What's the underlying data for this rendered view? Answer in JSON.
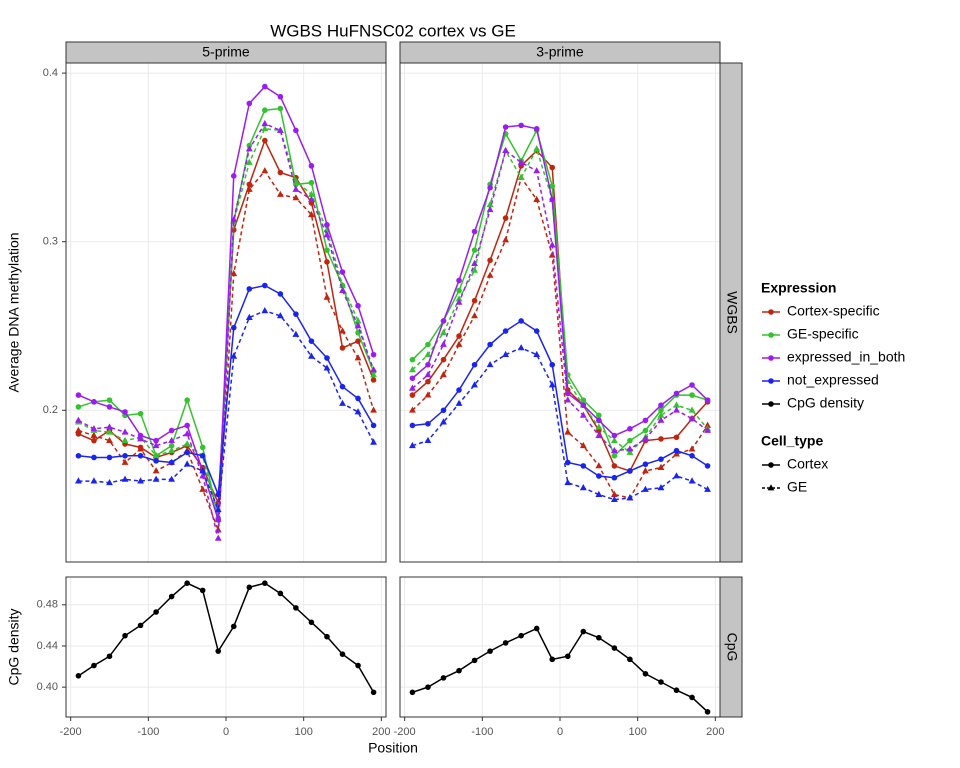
{
  "chart_data": {
    "type": "line",
    "title": "WGBS HuFNSC02 cortex vs GE",
    "x_label": "Position",
    "x": [
      -190,
      -170,
      -150,
      -130,
      -110,
      -90,
      -70,
      -50,
      -30,
      -10,
      10,
      30,
      50,
      70,
      90,
      110,
      130,
      150,
      170,
      190
    ],
    "xlim": [
      -206,
      206
    ],
    "xticks": [
      -200,
      -100,
      0,
      100,
      200
    ],
    "grid": true,
    "columns": [
      "5-prime",
      "3-prime"
    ],
    "legends": [
      {
        "title": "Expression",
        "entries": [
          {
            "name": "Cortex-specific",
            "color": "#c0250f"
          },
          {
            "name": "GE-specific",
            "color": "#33c32e"
          },
          {
            "name": "expressed_in_both",
            "color": "#9a1cf0"
          },
          {
            "name": "not_expressed",
            "color": "#1a24f0"
          },
          {
            "name": "CpG density",
            "color": "#000000"
          }
        ]
      },
      {
        "title": "Cell_type",
        "entries": [
          {
            "name": "Cortex",
            "marker": "circle",
            "dashed": false
          },
          {
            "name": "GE",
            "marker": "triangle",
            "dashed": true
          }
        ]
      }
    ],
    "rows": [
      {
        "label": "WGBS",
        "y_label": "Average DNA methylation",
        "ylim": [
          0.11,
          0.406
        ],
        "yticks": [
          0.2,
          0.3,
          0.4
        ],
        "panels": [
          {
            "series": [
              {
                "color": "#c0250f",
                "marker": "circle",
                "dashed": false,
                "values": [
                  0.186,
                  0.182,
                  0.188,
                  0.18,
                  0.178,
                  0.172,
                  0.175,
                  0.179,
                  0.166,
                  0.145,
                  0.307,
                  0.334,
                  0.36,
                  0.341,
                  0.338,
                  0.323,
                  0.288,
                  0.237,
                  0.241,
                  0.218
                ]
              },
              {
                "color": "#c0250f",
                "marker": "triangle",
                "dashed": true,
                "values": [
                  0.188,
                  0.185,
                  0.182,
                  0.169,
                  0.177,
                  0.164,
                  0.169,
                  0.176,
                  0.153,
                  0.129,
                  0.281,
                  0.331,
                  0.342,
                  0.328,
                  0.326,
                  0.316,
                  0.267,
                  0.247,
                  0.231,
                  0.2
                ]
              },
              {
                "color": "#33c32e",
                "marker": "circle",
                "dashed": false,
                "values": [
                  0.202,
                  0.205,
                  0.206,
                  0.197,
                  0.198,
                  0.173,
                  0.179,
                  0.206,
                  0.178,
                  0.136,
                  0.312,
                  0.357,
                  0.378,
                  0.379,
                  0.334,
                  0.335,
                  0.295,
                  0.274,
                  0.246,
                  0.223
                ]
              },
              {
                "color": "#33c32e",
                "marker": "triangle",
                "dashed": true,
                "values": [
                  0.193,
                  0.188,
                  0.187,
                  0.182,
                  0.184,
                  0.173,
                  0.176,
                  0.18,
                  0.173,
                  0.135,
                  0.312,
                  0.347,
                  0.367,
                  0.366,
                  0.336,
                  0.328,
                  0.307,
                  0.274,
                  0.253,
                  0.221
                ]
              },
              {
                "color": "#9a1cf0",
                "marker": "circle",
                "dashed": false,
                "values": [
                  0.209,
                  0.205,
                  0.202,
                  0.199,
                  0.185,
                  0.182,
                  0.188,
                  0.191,
                  0.164,
                  0.135,
                  0.339,
                  0.382,
                  0.392,
                  0.386,
                  0.366,
                  0.345,
                  0.31,
                  0.282,
                  0.262,
                  0.233
                ]
              },
              {
                "color": "#9a1cf0",
                "marker": "triangle",
                "dashed": true,
                "values": [
                  0.194,
                  0.189,
                  0.19,
                  0.187,
                  0.183,
                  0.179,
                  0.182,
                  0.186,
                  0.161,
                  0.124,
                  0.313,
                  0.355,
                  0.37,
                  0.366,
                  0.331,
                  0.325,
                  0.304,
                  0.271,
                  0.25,
                  0.224
                ]
              },
              {
                "color": "#1a24f0",
                "marker": "circle",
                "dashed": false,
                "values": [
                  0.173,
                  0.172,
                  0.172,
                  0.173,
                  0.173,
                  0.17,
                  0.169,
                  0.175,
                  0.173,
                  0.15,
                  0.249,
                  0.272,
                  0.274,
                  0.269,
                  0.257,
                  0.241,
                  0.231,
                  0.214,
                  0.207,
                  0.191
                ]
              },
              {
                "color": "#1a24f0",
                "marker": "triangle",
                "dashed": true,
                "values": [
                  0.158,
                  0.158,
                  0.157,
                  0.159,
                  0.158,
                  0.159,
                  0.159,
                  0.168,
                  0.164,
                  0.141,
                  0.232,
                  0.255,
                  0.259,
                  0.256,
                  0.245,
                  0.232,
                  0.225,
                  0.204,
                  0.199,
                  0.181
                ]
              }
            ]
          },
          {
            "series": [
              {
                "color": "#c0250f",
                "marker": "circle",
                "dashed": false,
                "values": [
                  0.209,
                  0.217,
                  0.23,
                  0.244,
                  0.265,
                  0.289,
                  0.314,
                  0.345,
                  0.354,
                  0.344,
                  0.212,
                  0.203,
                  0.188,
                  0.167,
                  0.164,
                  0.182,
                  0.183,
                  0.184,
                  0.195,
                  0.205
                ]
              },
              {
                "color": "#c0250f",
                "marker": "triangle",
                "dashed": true,
                "values": [
                  0.2,
                  0.209,
                  0.221,
                  0.239,
                  0.256,
                  0.28,
                  0.301,
                  0.338,
                  0.325,
                  0.292,
                  0.187,
                  0.179,
                  0.167,
                  0.15,
                  0.148,
                  0.164,
                  0.166,
                  0.174,
                  0.177,
                  0.191
                ]
              },
              {
                "color": "#33c32e",
                "marker": "circle",
                "dashed": false,
                "values": [
                  0.23,
                  0.239,
                  0.253,
                  0.271,
                  0.295,
                  0.334,
                  0.364,
                  0.348,
                  0.366,
                  0.333,
                  0.221,
                  0.206,
                  0.197,
                  0.173,
                  0.182,
                  0.188,
                  0.2,
                  0.209,
                  0.209,
                  0.206
                ]
              },
              {
                "color": "#33c32e",
                "marker": "triangle",
                "dashed": true,
                "values": [
                  0.224,
                  0.233,
                  0.246,
                  0.266,
                  0.283,
                  0.322,
                  0.354,
                  0.338,
                  0.355,
                  0.325,
                  0.217,
                  0.203,
                  0.19,
                  0.182,
                  0.175,
                  0.184,
                  0.197,
                  0.203,
                  0.2,
                  0.189
                ]
              },
              {
                "color": "#9a1cf0",
                "marker": "circle",
                "dashed": false,
                "values": [
                  0.219,
                  0.227,
                  0.253,
                  0.277,
                  0.306,
                  0.332,
                  0.368,
                  0.369,
                  0.367,
                  0.325,
                  0.21,
                  0.203,
                  0.194,
                  0.185,
                  0.189,
                  0.194,
                  0.203,
                  0.21,
                  0.215,
                  0.206
                ]
              },
              {
                "color": "#9a1cf0",
                "marker": "triangle",
                "dashed": true,
                "values": [
                  0.213,
                  0.221,
                  0.239,
                  0.264,
                  0.287,
                  0.319,
                  0.354,
                  0.347,
                  0.342,
                  0.298,
                  0.206,
                  0.197,
                  0.185,
                  0.176,
                  0.177,
                  0.183,
                  0.194,
                  0.2,
                  0.195,
                  0.188
                ]
              },
              {
                "color": "#1a24f0",
                "marker": "circle",
                "dashed": false,
                "values": [
                  0.191,
                  0.192,
                  0.2,
                  0.212,
                  0.227,
                  0.239,
                  0.247,
                  0.253,
                  0.247,
                  0.227,
                  0.169,
                  0.167,
                  0.161,
                  0.16,
                  0.164,
                  0.168,
                  0.171,
                  0.176,
                  0.173,
                  0.167
                ]
              },
              {
                "color": "#1a24f0",
                "marker": "triangle",
                "dashed": true,
                "values": [
                  0.179,
                  0.182,
                  0.193,
                  0.204,
                  0.215,
                  0.227,
                  0.233,
                  0.237,
                  0.233,
                  0.215,
                  0.157,
                  0.154,
                  0.15,
                  0.147,
                  0.148,
                  0.153,
                  0.154,
                  0.161,
                  0.158,
                  0.153
                ]
              }
            ]
          }
        ]
      },
      {
        "label": "CpG",
        "y_label": "CpG density",
        "ylim": [
          0.371,
          0.507
        ],
        "yticks": [
          {
            "value": 0.4,
            "label": "0.40"
          },
          {
            "value": 0.44,
            "label": "0.44"
          },
          {
            "value": 0.48,
            "label": "0.48"
          }
        ],
        "panels": [
          {
            "series": [
              {
                "color": "#000000",
                "marker": "circle",
                "dashed": false,
                "values": [
                  0.411,
                  0.421,
                  0.43,
                  0.45,
                  0.46,
                  0.473,
                  0.488,
                  0.501,
                  0.494,
                  0.435,
                  0.459,
                  0.497,
                  0.501,
                  0.491,
                  0.477,
                  0.463,
                  0.449,
                  0.432,
                  0.421,
                  0.395
                ]
              }
            ]
          },
          {
            "series": [
              {
                "color": "#000000",
                "marker": "circle",
                "dashed": false,
                "values": [
                  0.395,
                  0.4,
                  0.409,
                  0.416,
                  0.426,
                  0.435,
                  0.443,
                  0.45,
                  0.457,
                  0.427,
                  0.43,
                  0.454,
                  0.448,
                  0.438,
                  0.427,
                  0.413,
                  0.405,
                  0.397,
                  0.39,
                  0.376
                ]
              }
            ]
          }
        ]
      }
    ]
  }
}
